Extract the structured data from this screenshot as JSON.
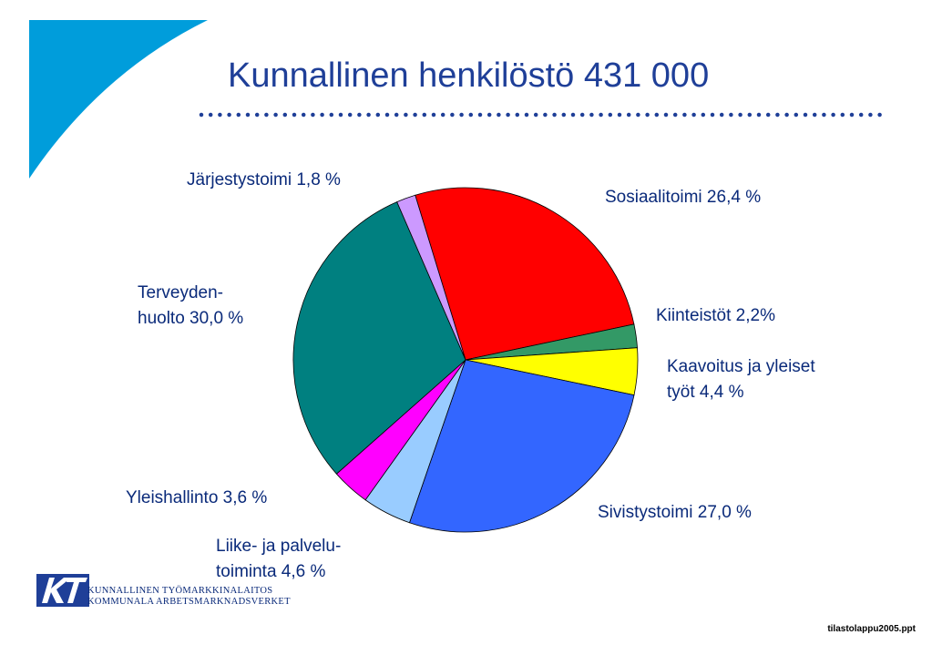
{
  "title": "Kunnallinen henkilöstö 431 000",
  "colors": {
    "title": "#1f3f98",
    "corner": "#009ddb",
    "label": "#0a2a7a",
    "logo": "#1f3f98"
  },
  "chart_data": {
    "type": "pie",
    "title": "Kunnallinen henkilöstö 431 000",
    "slices": [
      {
        "name": "Sosiaalitoimi",
        "value": 26.4,
        "label": "Sosiaalitoimi 26,4 %",
        "color": "#ff0000"
      },
      {
        "name": "Kiinteistöt",
        "value": 2.2,
        "label": "Kiinteistöt 2,2%",
        "color": "#339966"
      },
      {
        "name": "Kaavoitus ja yleiset työt",
        "value": 4.4,
        "label": "Kaavoitus ja yleiset työt 4,4 %",
        "label_lines": [
          "Kaavoitus ja yleiset",
          "työt 4,4 %"
        ],
        "color": "#ffff00"
      },
      {
        "name": "Sivistystoimi",
        "value": 27.0,
        "label": "Sivistystoimi 27,0 %",
        "color": "#3366ff"
      },
      {
        "name": "Liike- ja palvelutoiminta",
        "value": 4.6,
        "label": "Liike- ja palvelu- toiminta 4,6 %",
        "label_lines": [
          "Liike- ja palvelu-",
          "toiminta 4,6 %"
        ],
        "color": "#99ccff"
      },
      {
        "name": "Yleishallinto",
        "value": 3.6,
        "label": "Yleishallinto 3,6 %",
        "color": "#ff00ff"
      },
      {
        "name": "Terveydenhuolto",
        "value": 30.0,
        "label": "Terveyden- huolto 30,0 %",
        "label_lines": [
          "Terveyden-",
          "huolto 30,0 %"
        ],
        "color": "#008080"
      },
      {
        "name": "Järjestystoimi",
        "value": 1.8,
        "label": "Järjestystoimi 1,8 %",
        "color": "#cc99ff"
      }
    ],
    "legend": "none (labels placed around pie)"
  },
  "logo": {
    "line1": "KUNNALLINEN TYÖMARKKINALAITOS",
    "line2": "KOMMUNALA ARBETSMARKNADSVERKET"
  },
  "footer": {
    "filename": "tilastolappu2005.ppt"
  }
}
